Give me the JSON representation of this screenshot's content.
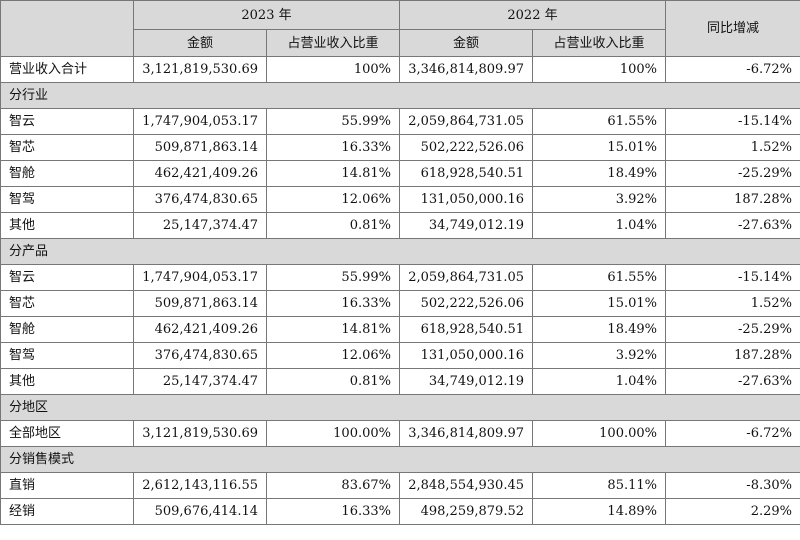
{
  "header": {
    "year_2023": "2023 年",
    "year_2022": "2022 年",
    "yoy": "同比增减",
    "amount": "金额",
    "ratio": "占营业收入比重"
  },
  "total": {
    "label": "营业收入合计",
    "amt23": "3,121,819,530.69",
    "pct23": "100%",
    "amt22": "3,346,814,809.97",
    "pct22": "100%",
    "yoy": "-6.72%"
  },
  "sections": [
    {
      "title": "分行业",
      "rows": [
        {
          "label": "智云",
          "amt23": "1,747,904,053.17",
          "pct23": "55.99%",
          "amt22": "2,059,864,731.05",
          "pct22": "61.55%",
          "yoy": "-15.14%"
        },
        {
          "label": "智芯",
          "amt23": "509,871,863.14",
          "pct23": "16.33%",
          "amt22": "502,222,526.06",
          "pct22": "15.01%",
          "yoy": "1.52%"
        },
        {
          "label": "智舱",
          "amt23": "462,421,409.26",
          "pct23": "14.81%",
          "amt22": "618,928,540.51",
          "pct22": "18.49%",
          "yoy": "-25.29%"
        },
        {
          "label": "智驾",
          "amt23": "376,474,830.65",
          "pct23": "12.06%",
          "amt22": "131,050,000.16",
          "pct22": "3.92%",
          "yoy": "187.28%"
        },
        {
          "label": "其他",
          "amt23": "25,147,374.47",
          "pct23": "0.81%",
          "amt22": "34,749,012.19",
          "pct22": "1.04%",
          "yoy": "-27.63%"
        }
      ]
    },
    {
      "title": "分产品",
      "rows": [
        {
          "label": "智云",
          "amt23": "1,747,904,053.17",
          "pct23": "55.99%",
          "amt22": "2,059,864,731.05",
          "pct22": "61.55%",
          "yoy": "-15.14%"
        },
        {
          "label": "智芯",
          "amt23": "509,871,863.14",
          "pct23": "16.33%",
          "amt22": "502,222,526.06",
          "pct22": "15.01%",
          "yoy": "1.52%"
        },
        {
          "label": "智舱",
          "amt23": "462,421,409.26",
          "pct23": "14.81%",
          "amt22": "618,928,540.51",
          "pct22": "18.49%",
          "yoy": "-25.29%"
        },
        {
          "label": "智驾",
          "amt23": "376,474,830.65",
          "pct23": "12.06%",
          "amt22": "131,050,000.16",
          "pct22": "3.92%",
          "yoy": "187.28%"
        },
        {
          "label": "其他",
          "amt23": "25,147,374.47",
          "pct23": "0.81%",
          "amt22": "34,749,012.19",
          "pct22": "1.04%",
          "yoy": "-27.63%"
        }
      ]
    },
    {
      "title": "分地区",
      "rows": [
        {
          "label": "全部地区",
          "amt23": "3,121,819,530.69",
          "pct23": "100.00%",
          "amt22": "3,346,814,809.97",
          "pct22": "100.00%",
          "yoy": "-6.72%"
        }
      ]
    },
    {
      "title": "分销售模式",
      "rows": [
        {
          "label": "直销",
          "amt23": "2,612,143,116.55",
          "pct23": "83.67%",
          "amt22": "2,848,554,930.45",
          "pct22": "85.11%",
          "yoy": "-8.30%"
        },
        {
          "label": "经销",
          "amt23": "509,676,414.14",
          "pct23": "16.33%",
          "amt22": "498,259,879.52",
          "pct22": "14.89%",
          "yoy": "2.29%"
        }
      ]
    }
  ]
}
